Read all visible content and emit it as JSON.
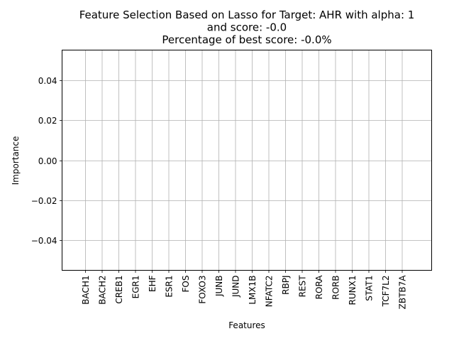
{
  "chart_data": {
    "type": "bar",
    "title": [
      "Feature Selection Based on Lasso for Target: AHR with alpha: 1",
      "and score: -0.0",
      "Percentage of best score: -0.0%"
    ],
    "xlabel": "Features",
    "ylabel": "Importance",
    "categories": [
      "BACH1",
      "BACH2",
      "CREB1",
      "EGR1",
      "EHF",
      "ESR1",
      "FOS",
      "FOXO3",
      "JUNB",
      "JUND",
      "LMX1B",
      "NFATC2",
      "RBPJ",
      "REST",
      "RORA",
      "RORB",
      "RUNX1",
      "STAT1",
      "TCF7L2",
      "ZBTB7A"
    ],
    "values": [
      0,
      0,
      0,
      0,
      0,
      0,
      0,
      0,
      0,
      0,
      0,
      0,
      0,
      0,
      0,
      0,
      0,
      0,
      0,
      0
    ],
    "ylim": [
      -0.055,
      0.055
    ],
    "yticks": [
      -0.04,
      -0.02,
      0.0,
      0.02,
      0.04
    ],
    "ytick_labels": [
      "−0.04",
      "−0.02",
      "0.00",
      "0.02",
      "0.04"
    ],
    "grid": true,
    "colors": {
      "grid": "#b0b0b0",
      "axis": "#000000",
      "bar": "#1f77b4"
    }
  }
}
